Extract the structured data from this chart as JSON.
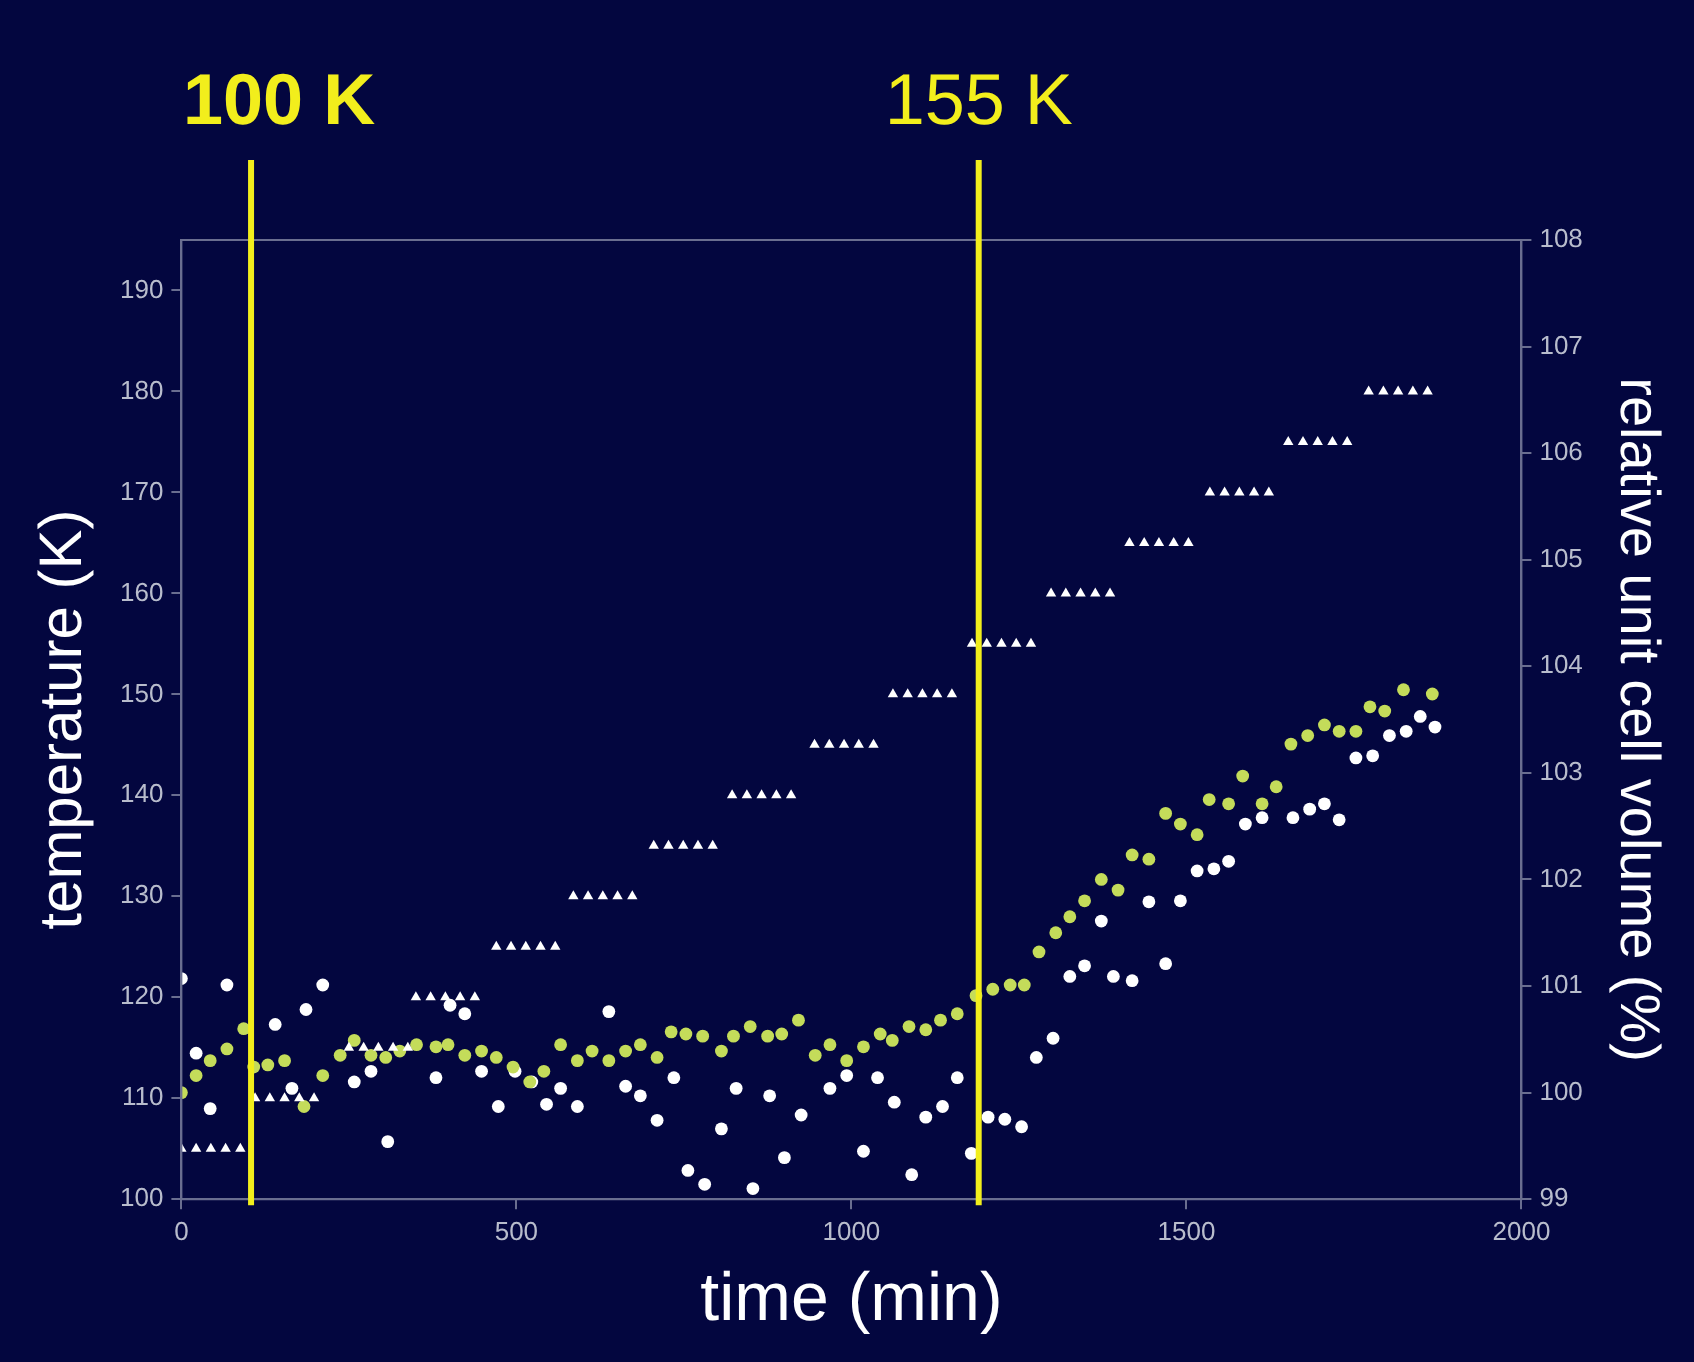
{
  "chart_data": {
    "type": "scatter",
    "xlabel": "time (min)",
    "ylabel": "temperature (K)",
    "y2label": "relative unit cell volume (%)",
    "xlim": [
      0,
      2000
    ],
    "xticks": [
      0,
      500,
      1000,
      1500,
      2000
    ],
    "ylim": [
      100,
      195
    ],
    "yticks": [
      100,
      110,
      120,
      130,
      140,
      150,
      160,
      170,
      180,
      190
    ],
    "y2lim": [
      99,
      108
    ],
    "y2ticks": [
      99,
      100,
      101,
      102,
      103,
      104,
      105,
      106,
      107,
      108
    ],
    "grid": false,
    "legend": false,
    "ref_lines": [
      {
        "axis": "x",
        "value": 104,
        "label": "100 K",
        "color": "#f2ee1c"
      },
      {
        "axis": "x",
        "value": 1190,
        "label": "155 K",
        "color": "#f2ee1c"
      }
    ],
    "series": [
      {
        "marker": "triangle",
        "color": "#ffffff",
        "x": [
          0,
          22,
          44,
          66,
          88,
          110,
          132,
          154,
          176,
          198,
          250,
          272,
          294,
          316,
          338,
          350,
          372,
          394,
          416,
          438,
          470,
          492,
          514,
          536,
          558,
          585,
          607,
          629,
          651,
          673,
          705,
          727,
          749,
          771,
          793,
          822,
          844,
          866,
          888,
          910,
          945,
          967,
          989,
          1011,
          1033,
          1062,
          1084,
          1106,
          1128,
          1150,
          1180,
          1202,
          1224,
          1246,
          1268,
          1298,
          1320,
          1342,
          1364,
          1386,
          1415,
          1437,
          1459,
          1481,
          1503,
          1535,
          1557,
          1579,
          1601,
          1623,
          1652,
          1674,
          1696,
          1718,
          1740,
          1772,
          1794,
          1816,
          1838,
          1860
        ],
        "values": [
          105,
          105,
          105,
          105,
          105,
          110,
          110,
          110,
          110,
          110,
          115,
          115,
          115,
          115,
          115,
          120,
          120,
          120,
          120,
          120,
          125,
          125,
          125,
          125,
          125,
          130,
          130,
          130,
          130,
          130,
          135,
          135,
          135,
          135,
          135,
          140,
          140,
          140,
          140,
          140,
          145,
          145,
          145,
          145,
          145,
          150,
          150,
          150,
          150,
          150,
          155,
          155,
          155,
          155,
          155,
          160,
          160,
          160,
          160,
          160,
          165,
          165,
          165,
          165,
          165,
          170,
          170,
          170,
          170,
          170,
          175,
          175,
          175,
          175,
          175,
          180,
          180,
          180,
          180,
          180
        ]
      },
      {
        "marker": "circle",
        "axis": "y2",
        "color": "#c4dc5a",
        "x": [
          0,
          22,
          43,
          68,
          93,
          108,
          129,
          154,
          183,
          211,
          237,
          258,
          283,
          305,
          326,
          351,
          380,
          398,
          423,
          448,
          470,
          495,
          520,
          541,
          566,
          591,
          613,
          638,
          663,
          685,
          710,
          731,
          753,
          778,
          806,
          824,
          849,
          875,
          896,
          921,
          946,
          968,
          993,
          1018,
          1043,
          1061,
          1086,
          1111,
          1133,
          1158,
          1186,
          1211,
          1237,
          1258,
          1280,
          1305,
          1326,
          1348,
          1373,
          1398,
          1419,
          1444,
          1469,
          1491,
          1516,
          1534,
          1563,
          1584,
          1613,
          1634,
          1656,
          1681,
          1706,
          1728,
          1753,
          1774,
          1796,
          1824,
          1867
        ],
        "values": [
          100.0,
          100.16,
          100.3,
          100.41,
          100.6,
          100.24,
          100.26,
          100.3,
          99.87,
          100.16,
          100.35,
          100.49,
          100.35,
          100.33,
          100.39,
          100.45,
          100.43,
          100.45,
          100.35,
          100.39,
          100.33,
          100.24,
          100.1,
          100.2,
          100.45,
          100.3,
          100.39,
          100.3,
          100.39,
          100.45,
          100.33,
          100.57,
          100.55,
          100.53,
          100.39,
          100.53,
          100.62,
          100.53,
          100.55,
          100.68,
          100.35,
          100.45,
          100.3,
          100.43,
          100.55,
          100.49,
          100.62,
          100.59,
          100.68,
          100.74,
          100.91,
          100.97,
          101.01,
          101.01,
          101.32,
          101.5,
          101.65,
          101.8,
          102.0,
          101.9,
          102.23,
          102.19,
          102.62,
          102.52,
          102.42,
          102.75,
          102.71,
          102.97,
          102.71,
          102.87,
          103.27,
          103.35,
          103.45,
          103.39,
          103.39,
          103.62,
          103.58,
          103.78,
          103.74
        ]
      },
      {
        "marker": "circle",
        "axis": "y2",
        "color": "#ffffff",
        "x": [
          0,
          22,
          43,
          68,
          140,
          165,
          186,
          211,
          258,
          283,
          308,
          380,
          401,
          423,
          448,
          473,
          498,
          523,
          545,
          566,
          591,
          638,
          663,
          685,
          710,
          735,
          756,
          781,
          806,
          828,
          853,
          878,
          900,
          925,
          968,
          993,
          1018,
          1039,
          1064,
          1090,
          1111,
          1136,
          1158,
          1179,
          1204,
          1229,
          1254,
          1276,
          1301,
          1326,
          1348,
          1373,
          1391,
          1419,
          1444,
          1469,
          1491,
          1516,
          1541,
          1563,
          1588,
          1613,
          1659,
          1684,
          1706,
          1728,
          1753,
          1778,
          1803,
          1828,
          1849,
          1871
        ],
        "values": [
          101.07,
          100.37,
          99.85,
          101.01,
          100.64,
          100.04,
          100.78,
          101.01,
          100.1,
          100.2,
          99.54,
          100.14,
          100.82,
          100.74,
          100.2,
          99.87,
          100.2,
          100.1,
          99.89,
          100.04,
          99.87,
          100.76,
          100.06,
          99.97,
          99.74,
          100.14,
          99.27,
          99.14,
          99.66,
          100.04,
          99.1,
          99.97,
          99.39,
          99.79,
          100.04,
          100.16,
          99.45,
          100.14,
          99.91,
          99.23,
          99.77,
          99.87,
          100.14,
          99.43,
          99.77,
          99.75,
          99.68,
          100.33,
          100.51,
          101.09,
          101.19,
          101.61,
          101.09,
          101.05,
          101.79,
          101.21,
          101.8,
          102.08,
          102.1,
          102.17,
          102.52,
          102.58,
          102.58,
          102.66,
          102.71,
          102.56,
          103.14,
          103.16,
          103.35,
          103.39,
          103.53,
          103.43
        ]
      }
    ]
  }
}
